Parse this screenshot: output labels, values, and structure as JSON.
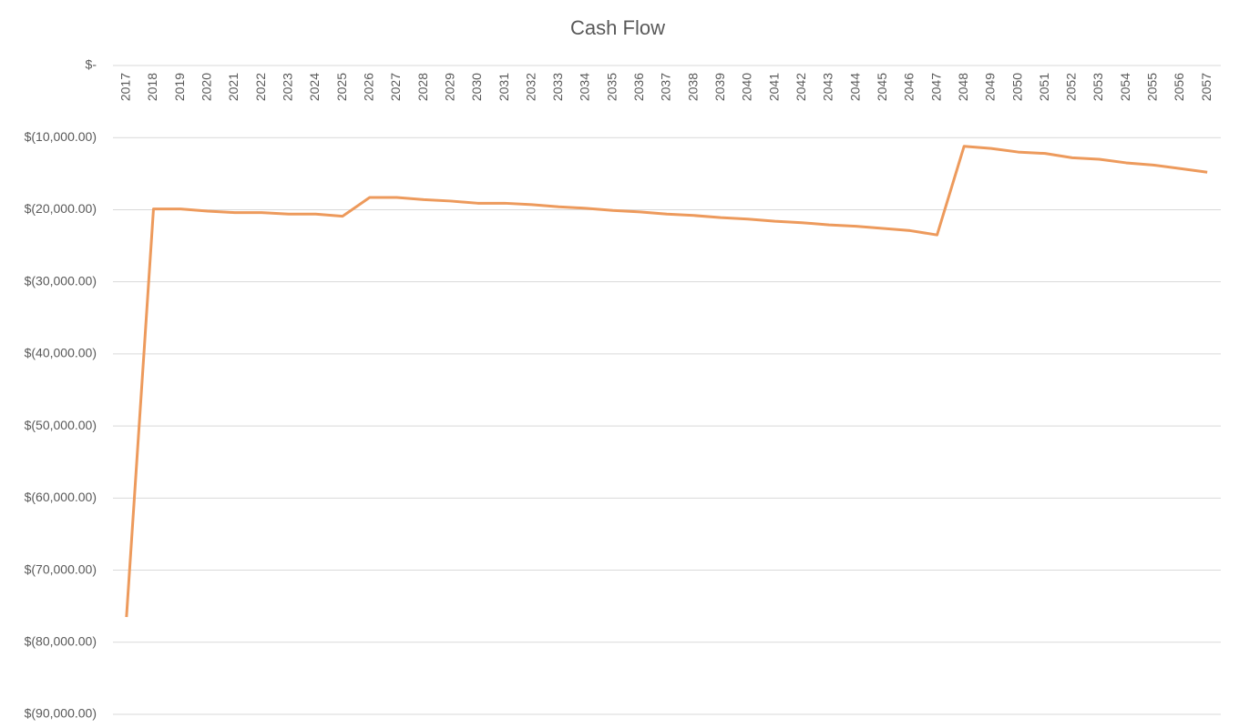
{
  "chart_data": {
    "type": "line",
    "title": "Cash Flow",
    "categories": [
      "2017",
      "2018",
      "2019",
      "2020",
      "2021",
      "2022",
      "2023",
      "2024",
      "2025",
      "2026",
      "2027",
      "2028",
      "2029",
      "2030",
      "2031",
      "2032",
      "2033",
      "2034",
      "2035",
      "2036",
      "2037",
      "2038",
      "2039",
      "2040",
      "2041",
      "2042",
      "2043",
      "2044",
      "2045",
      "2046",
      "2047",
      "2048",
      "2049",
      "2050",
      "2051",
      "2052",
      "2053",
      "2054",
      "2055",
      "2056",
      "2057"
    ],
    "series": [
      {
        "name": "Cash Flow",
        "color": "#ed9a5c",
        "values": [
          -76500,
          -19900,
          -19900,
          -20200,
          -20400,
          -20400,
          -20600,
          -20600,
          -20900,
          -18300,
          -18300,
          -18600,
          -18800,
          -19100,
          -19100,
          -19300,
          -19600,
          -19800,
          -20100,
          -20300,
          -20600,
          -20800,
          -21100,
          -21300,
          -21600,
          -21800,
          -22100,
          -22300,
          -22600,
          -22900,
          -23500,
          -11200,
          -11500,
          -12000,
          -12200,
          -12800,
          -13000,
          -13500,
          -13800,
          -14300,
          -14800
        ]
      }
    ],
    "ylim": [
      -90000,
      0
    ],
    "yticks": [
      {
        "value": 0,
        "label": "$-"
      },
      {
        "value": -10000,
        "label": "$(10,000.00)"
      },
      {
        "value": -20000,
        "label": "$(20,000.00)"
      },
      {
        "value": -30000,
        "label": "$(30,000.00)"
      },
      {
        "value": -40000,
        "label": "$(40,000.00)"
      },
      {
        "value": -50000,
        "label": "$(50,000.00)"
      },
      {
        "value": -60000,
        "label": "$(60,000.00)"
      },
      {
        "value": -70000,
        "label": "$(70,000.00)"
      },
      {
        "value": -80000,
        "label": "$(80,000.00)"
      },
      {
        "value": -90000,
        "label": "$(90,000.00)"
      }
    ],
    "grid": true
  }
}
